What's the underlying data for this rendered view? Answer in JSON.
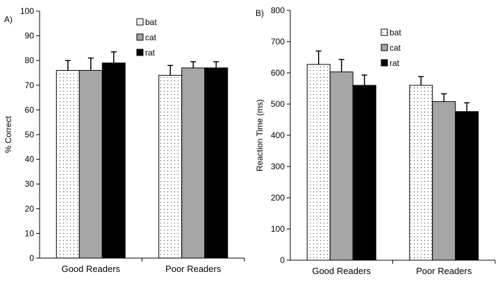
{
  "chart_data": [
    {
      "panel_label": "A)",
      "type": "bar",
      "categories": [
        "Good Readers",
        "Poor Readers"
      ],
      "series": [
        {
          "name": "bat",
          "values": [
            76,
            74
          ],
          "errors": [
            4,
            4
          ],
          "fill": "dots"
        },
        {
          "name": "cat",
          "values": [
            76,
            77
          ],
          "errors": [
            5,
            2.5
          ],
          "fill": "#a6a6a6"
        },
        {
          "name": "rat",
          "values": [
            79,
            77
          ],
          "errors": [
            4.5,
            2.5
          ],
          "fill": "#000000"
        }
      ],
      "ylabel": "% Correct",
      "ylim": [
        0,
        100
      ],
      "yticks": [
        0,
        10,
        20,
        30,
        40,
        50,
        60,
        70,
        80,
        90,
        100
      ],
      "grid": false,
      "legend": "top-right"
    },
    {
      "panel_label": "B)",
      "type": "bar",
      "categories": [
        "Good Readers",
        "Poor Readers"
      ],
      "series": [
        {
          "name": "bat",
          "values": [
            627,
            560
          ],
          "errors": [
            43,
            28
          ],
          "fill": "dots"
        },
        {
          "name": "cat",
          "values": [
            603,
            508
          ],
          "errors": [
            40,
            25
          ],
          "fill": "#a6a6a6"
        },
        {
          "name": "rat",
          "values": [
            560,
            476
          ],
          "errors": [
            33,
            28
          ],
          "fill": "#000000"
        }
      ],
      "ylabel": "Reaction Time (ms)",
      "ylim": [
        0,
        800
      ],
      "yticks": [
        0,
        100,
        200,
        300,
        400,
        500,
        600,
        700,
        800
      ],
      "grid": false,
      "legend": "top-right"
    }
  ]
}
